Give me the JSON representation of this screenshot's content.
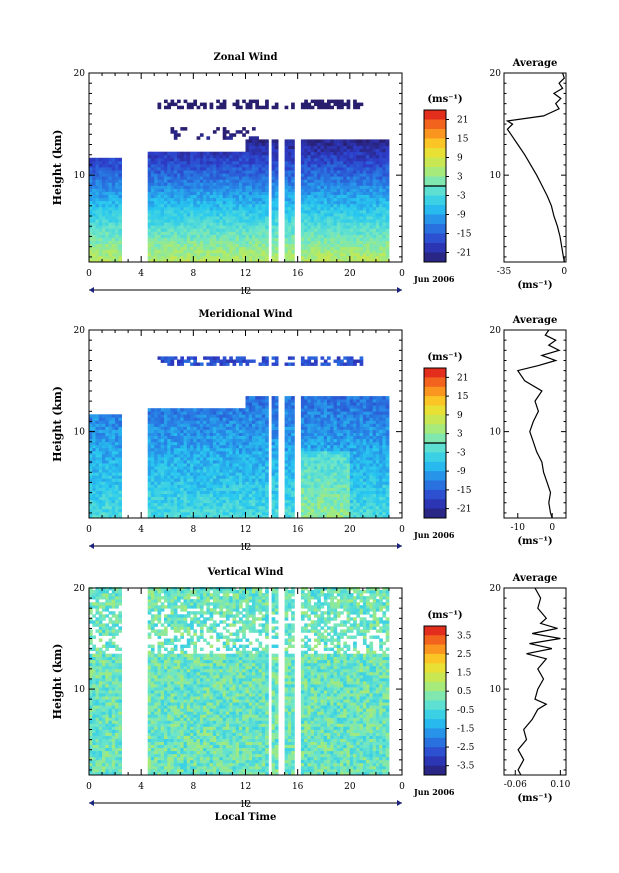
{
  "chart_data": [
    {
      "type": "heatmap",
      "title": "Zonal Wind",
      "ylabel": "Height (km)",
      "xlabel": "",
      "ylim": [
        1.5,
        20
      ],
      "xlim": [
        0,
        24
      ],
      "x_ticks": [
        "0",
        "4",
        "8",
        "12",
        "16",
        "20",
        "0"
      ],
      "x_tick_values": [
        0,
        4,
        8,
        12,
        16,
        20,
        24
      ],
      "y_ticks": [
        "10",
        "20"
      ],
      "date_axis": {
        "labels": [
          "12"
        ],
        "edge_label": "Jun 2006"
      },
      "colorbar": {
        "unit": "(ms⁻¹)",
        "ticks": [
          "21",
          "15",
          "9",
          "3",
          "-3",
          "-9",
          "-15",
          "-21"
        ],
        "range": [
          -24,
          24
        ],
        "marker": 0
      },
      "data_gaps_hours": [
        [
          2.3,
          4.5
        ],
        [
          13.6,
          14.0
        ],
        [
          14.5,
          14.9
        ],
        [
          15.7,
          16.1
        ]
      ],
      "vmin": -24,
      "vmax": 24,
      "profile": {
        "title": "Average",
        "xlabel": "(ms⁻¹)",
        "xlim": [
          -35,
          1
        ],
        "x_ticks": [
          "-35",
          "0"
        ],
        "y_ticks": [
          "10",
          "20"
        ],
        "heights_km": [
          1.5,
          2,
          3,
          4,
          5,
          6,
          7,
          8,
          9,
          10,
          11,
          12,
          13,
          14,
          14.5,
          15,
          15.3,
          15.8,
          16.5,
          17,
          17.5,
          18,
          18.5,
          19,
          19.5,
          20
        ],
        "values": [
          0,
          -0.5,
          -1.5,
          -2.5,
          -4,
          -6,
          -7.5,
          -10,
          -13,
          -16,
          -19.5,
          -23,
          -27,
          -31,
          -33,
          -30,
          -33,
          -12,
          -3,
          -5,
          -2,
          -6,
          -1,
          -3,
          0,
          -1
        ]
      }
    },
    {
      "type": "heatmap",
      "title": "Meridional Wind",
      "ylabel": "Height (km)",
      "xlabel": "",
      "ylim": [
        1.5,
        20
      ],
      "xlim": [
        0,
        24
      ],
      "x_ticks": [
        "0",
        "4",
        "8",
        "12",
        "16",
        "20",
        "0"
      ],
      "x_tick_values": [
        0,
        4,
        8,
        12,
        16,
        20,
        24
      ],
      "y_ticks": [
        "10",
        "20"
      ],
      "date_axis": {
        "labels": [
          "12"
        ],
        "edge_label": "Jun 2006"
      },
      "colorbar": {
        "unit": "(ms⁻¹)",
        "ticks": [
          "21",
          "15",
          "9",
          "3",
          "-3",
          "-9",
          "-15",
          "-21"
        ],
        "range": [
          -24,
          24
        ],
        "marker": 0
      },
      "data_gaps_hours": [
        [
          2.3,
          4.5
        ],
        [
          13.6,
          14.0
        ],
        [
          14.5,
          14.9
        ],
        [
          15.7,
          16.1
        ]
      ],
      "vmin": -24,
      "vmax": 24,
      "profile": {
        "title": "Average",
        "xlabel": "(ms⁻¹)",
        "xlim": [
          -14,
          4
        ],
        "x_ticks": [
          "-10",
          "0"
        ],
        "y_ticks": [
          "10",
          "20"
        ],
        "heights_km": [
          1.5,
          2,
          3,
          4,
          5,
          6,
          7,
          8,
          9,
          10,
          11,
          12,
          13,
          14,
          15,
          16,
          16.5,
          17,
          17.5,
          18,
          18.5,
          19,
          19.5,
          20
        ],
        "values": [
          0,
          -0.5,
          -1,
          -0.5,
          -1.5,
          -2.5,
          -3,
          -4.5,
          -5.5,
          -6.5,
          -5.5,
          -4,
          -5,
          -3,
          -8,
          -10,
          -4,
          1,
          -3,
          2,
          -1,
          1,
          -2,
          -1
        ]
      }
    },
    {
      "type": "heatmap",
      "title": "Vertical Wind",
      "ylabel": "Height (km)",
      "xlabel": "Local Time",
      "ylim": [
        1.5,
        20
      ],
      "xlim": [
        0,
        24
      ],
      "x_ticks": [
        "0",
        "4",
        "8",
        "12",
        "16",
        "20",
        "0"
      ],
      "x_tick_values": [
        0,
        4,
        8,
        12,
        16,
        20,
        24
      ],
      "y_ticks": [
        "10",
        "20"
      ],
      "date_axis": {
        "labels": [
          "12"
        ],
        "edge_label": "Jun 2006"
      },
      "colorbar": {
        "unit": "(ms⁻¹)",
        "ticks": [
          "3.5",
          "2.5",
          "1.5",
          "0.5",
          "-0.5",
          "-1.5",
          "-2.5",
          "-3.5"
        ],
        "range": [
          -4,
          4
        ]
      },
      "data_gaps_hours": [
        [
          2.3,
          4.5
        ],
        [
          13.6,
          14.0
        ],
        [
          14.5,
          14.9
        ],
        [
          15.7,
          16.1
        ]
      ],
      "vmin": -4,
      "vmax": 4,
      "profile": {
        "title": "Average",
        "xlabel": "(ms⁻¹)",
        "xlim": [
          -0.1,
          0.12
        ],
        "x_ticks": [
          "-0.06",
          "0.10"
        ],
        "y_ticks": [
          "10",
          "20"
        ],
        "heights_km": [
          1.5,
          2,
          3,
          4,
          5,
          6,
          7,
          8,
          8.5,
          9,
          10,
          11,
          12,
          13,
          13.5,
          14,
          14.5,
          15,
          15.5,
          16,
          16.5,
          17,
          18,
          19,
          20
        ],
        "values": [
          -0.04,
          -0.05,
          -0.03,
          -0.05,
          -0.02,
          -0.03,
          0.0,
          0.02,
          0.05,
          0.01,
          0.02,
          0.04,
          0.02,
          0.05,
          -0.02,
          0.07,
          -0.01,
          0.1,
          0.0,
          0.09,
          0.03,
          0.05,
          0.02,
          0.03,
          0.01
        ]
      }
    }
  ]
}
